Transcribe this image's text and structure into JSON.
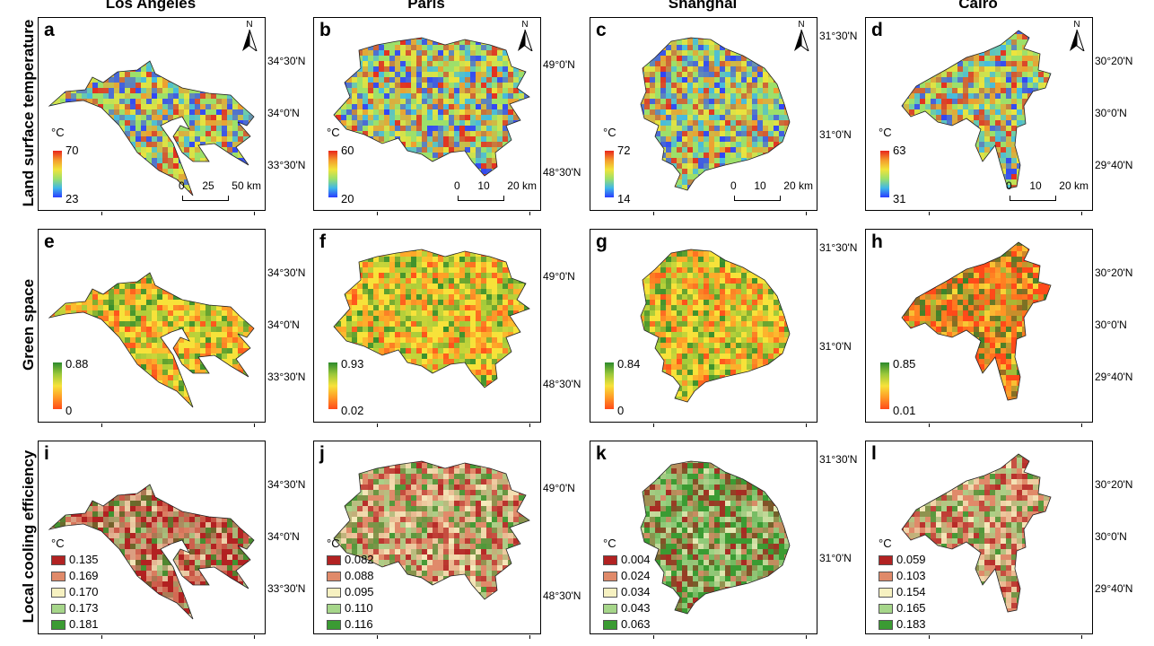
{
  "cities": [
    "Los Angeles",
    "Paris",
    "Shanghai",
    "Cairo"
  ],
  "rows": [
    "Land surface temperature",
    "Green space",
    "Local cooling efficiency"
  ],
  "colors": {
    "lst": [
      "#2a3cff",
      "#3fb7e8",
      "#9de06a",
      "#f2e33a",
      "#f49a2c",
      "#e8261c"
    ],
    "green": [
      "#ff4a1a",
      "#ff9a26",
      "#f7e23a",
      "#9bc83a",
      "#2c8a2c"
    ],
    "lce": [
      "#b22222",
      "#e08a6a",
      "#f6f1c1",
      "#a6d68a",
      "#3b9b33"
    ]
  },
  "panels": [
    {
      "letter": "a",
      "unit": "°C",
      "max": "70",
      "min": "23",
      "scale": [
        "0",
        "25",
        "50 km"
      ],
      "north": "N"
    },
    {
      "letter": "b",
      "unit": "°C",
      "max": "60",
      "min": "20",
      "scale": [
        "0",
        "10",
        "20 km"
      ],
      "north": "N"
    },
    {
      "letter": "c",
      "unit": "°C",
      "max": "72",
      "min": "14",
      "scale": [
        "0",
        "10",
        "20 km"
      ],
      "north": "N"
    },
    {
      "letter": "d",
      "unit": "°C",
      "max": "63",
      "min": "31",
      "scale": [
        "0",
        "10",
        "20 km"
      ],
      "north": "N"
    },
    {
      "letter": "e",
      "max": "0.88",
      "min": "0"
    },
    {
      "letter": "f",
      "max": "0.93",
      "min": "0.02"
    },
    {
      "letter": "g",
      "max": "0.84",
      "min": "0"
    },
    {
      "letter": "h",
      "max": "0.85",
      "min": "0.01"
    },
    {
      "letter": "i",
      "unit": "°C",
      "legend": [
        "0.135",
        "0.169",
        "0.170",
        "0.173",
        "0.181"
      ]
    },
    {
      "letter": "j",
      "unit": "°C",
      "legend": [
        "0.082",
        "0.088",
        "0.095",
        "0.110",
        "0.116"
      ]
    },
    {
      "letter": "k",
      "unit": "°C",
      "legend": [
        "0.004",
        "0.024",
        "0.034",
        "0.043",
        "0.063"
      ]
    },
    {
      "letter": "l",
      "unit": "°C",
      "legend": [
        "0.059",
        "0.103",
        "0.154",
        "0.165",
        "0.183"
      ]
    }
  ],
  "coords": [
    [
      "34°30'N",
      "34°0'N",
      "33°30'N"
    ],
    [
      "49°0'N",
      "48°30'N"
    ],
    [
      "31°30'N",
      "31°0'N"
    ],
    [
      "30°20'N",
      "30°0'N",
      "29°40'N"
    ]
  ]
}
